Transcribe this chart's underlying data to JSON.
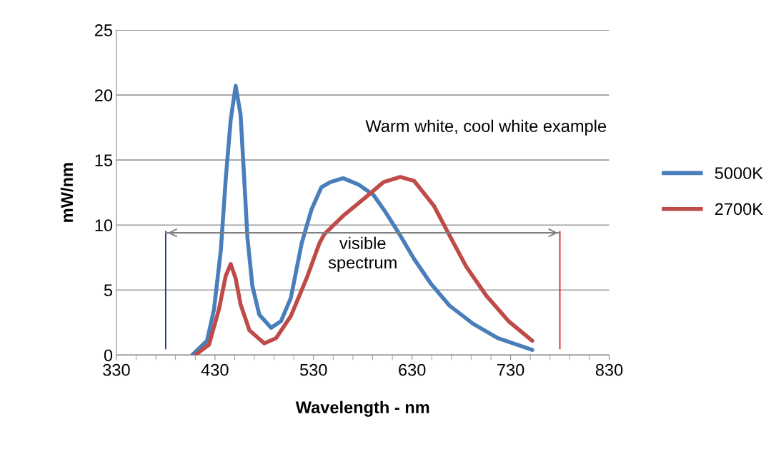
{
  "chart_data": {
    "type": "line",
    "xlabel": "Wavelength - nm",
    "ylabel": "mW/nm",
    "annotations": [
      "Warm white, cool white example",
      "visible spectrum"
    ],
    "xlim": [
      330,
      830
    ],
    "xticks": [
      330,
      430,
      530,
      630,
      730,
      830
    ],
    "ylim": [
      0,
      25
    ],
    "yticks": [
      0,
      5,
      10,
      15,
      20,
      25
    ],
    "grid": "y",
    "legend": "right",
    "line_style": "solid",
    "marker": "none",
    "ref_lines": [
      {
        "axis": "x",
        "value": 380,
        "color": "#1f3a93"
      },
      {
        "axis": "x",
        "value": 780,
        "color": "#e02020"
      }
    ],
    "series": [
      {
        "name": "5000K",
        "color": "#4a7ebb",
        "x": [
          407,
          422,
          429,
          436,
          441,
          446,
          451,
          456,
          459,
          463,
          468,
          475,
          487,
          497,
          507,
          518,
          528,
          538,
          547,
          560,
          576,
          591,
          603,
          618,
          632,
          649,
          668,
          692,
          717,
          752
        ],
        "values": [
          0,
          1.1,
          3.5,
          8.1,
          13.6,
          18.1,
          20.7,
          18.5,
          14.5,
          9.0,
          5.3,
          3.1,
          2.1,
          2.6,
          4.4,
          8.6,
          11.2,
          12.9,
          13.3,
          13.6,
          13.1,
          12.3,
          11.0,
          9.2,
          7.4,
          5.5,
          3.8,
          2.4,
          1.3,
          0.4
        ]
      },
      {
        "type": "line",
        "color": "#808080",
        "x": [
          380,
          780
        ],
        "values": [
          9.4,
          9.4
        ]
      },
      {
        "name": "2700K",
        "color": "#be4b48",
        "x": [
          410,
          424,
          434,
          441,
          446,
          451,
          456,
          465,
          480,
          492,
          507,
          523,
          536,
          541,
          560,
          584,
          601,
          618,
          632,
          652,
          668,
          685,
          705,
          728,
          752
        ],
        "values": [
          0,
          0.8,
          3.5,
          6.1,
          7.0,
          5.9,
          3.9,
          1.9,
          0.9,
          1.3,
          3.0,
          5.9,
          8.6,
          9.3,
          10.7,
          12.2,
          13.3,
          13.7,
          13.4,
          11.5,
          9.2,
          6.8,
          4.6,
          2.6,
          1.1
        ]
      }
    ]
  }
}
